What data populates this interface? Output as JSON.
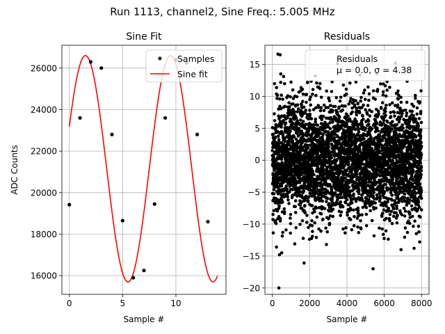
{
  "figure": {
    "suptitle": "Run 1113, channel2, Sine Freq.: 5.005 MHz"
  },
  "colors": {
    "samples": "#000000",
    "fit": "#ff0000",
    "grid": "#b0b0b0",
    "legend_edge": "#cccccc"
  },
  "chart_data": [
    {
      "type": "scatter+line",
      "title": "Sine Fit",
      "xlabel": "Sample #",
      "ylabel": "ADC Counts",
      "xlim": [
        -0.7,
        14.7
      ],
      "ylim": [
        15100,
        27100
      ],
      "xticks": [
        0,
        5,
        10
      ],
      "yticks": [
        16000,
        18000,
        20000,
        22000,
        24000,
        26000
      ],
      "grid": true,
      "legend": {
        "placement": "top-right",
        "entries": [
          "Samples",
          "Sine fit"
        ]
      },
      "series": [
        {
          "name": "Samples",
          "kind": "scatter",
          "x": [
            0,
            1,
            2,
            3,
            4,
            5,
            6,
            7,
            8,
            9,
            10,
            11,
            12,
            13
          ],
          "y": [
            19420,
            23600,
            26300,
            26000,
            22800,
            18650,
            15900,
            16250,
            19450,
            23600,
            26400,
            26250,
            22800,
            18600
          ]
        },
        {
          "name": "Sine fit",
          "kind": "line",
          "function": {
            "offset": 21150,
            "amplitude": 5450,
            "period": 7.985,
            "phase": -0.485,
            "x_range": [
              0,
              13.9
            ]
          }
        }
      ]
    },
    {
      "type": "scatter",
      "title": "Residuals",
      "xlabel": "Sample #",
      "ylabel": "",
      "xlim": [
        -400,
        8400
      ],
      "ylim": [
        -21,
        18
      ],
      "xticks": [
        0,
        2000,
        4000,
        6000,
        8000
      ],
      "yticks": [
        -20,
        -15,
        -10,
        -5,
        0,
        5,
        10,
        15
      ],
      "grid": true,
      "legend": {
        "placement": "top-right",
        "entries": [
          "Residuals",
          "μ = 0.0, σ = 4.38"
        ]
      },
      "series": [
        {
          "name": "Residuals",
          "n_points": 8000,
          "mean": 0.0,
          "std": 4.38,
          "outliers": [
            [
              220,
              -13.6
            ],
            [
              300,
              16.6
            ],
            [
              420,
              16.5
            ],
            [
              350,
              -20.0
            ],
            [
              500,
              -14.5
            ],
            [
              380,
              -14.8
            ],
            [
              450,
              13.5
            ],
            [
              1700,
              -16.1
            ],
            [
              3500,
              15.1
            ],
            [
              5400,
              -17.0
            ],
            [
              6600,
              15.2
            ],
            [
              2900,
              -13.2
            ],
            [
              7600,
              -13.8
            ],
            [
              7900,
              -12.8
            ],
            [
              600,
              13.1
            ],
            [
              2300,
              13.2
            ],
            [
              4700,
              13.3
            ],
            [
              6900,
              -14.0
            ],
            [
              1200,
              -13.1
            ],
            [
              5600,
              13.5
            ]
          ]
        }
      ]
    }
  ]
}
